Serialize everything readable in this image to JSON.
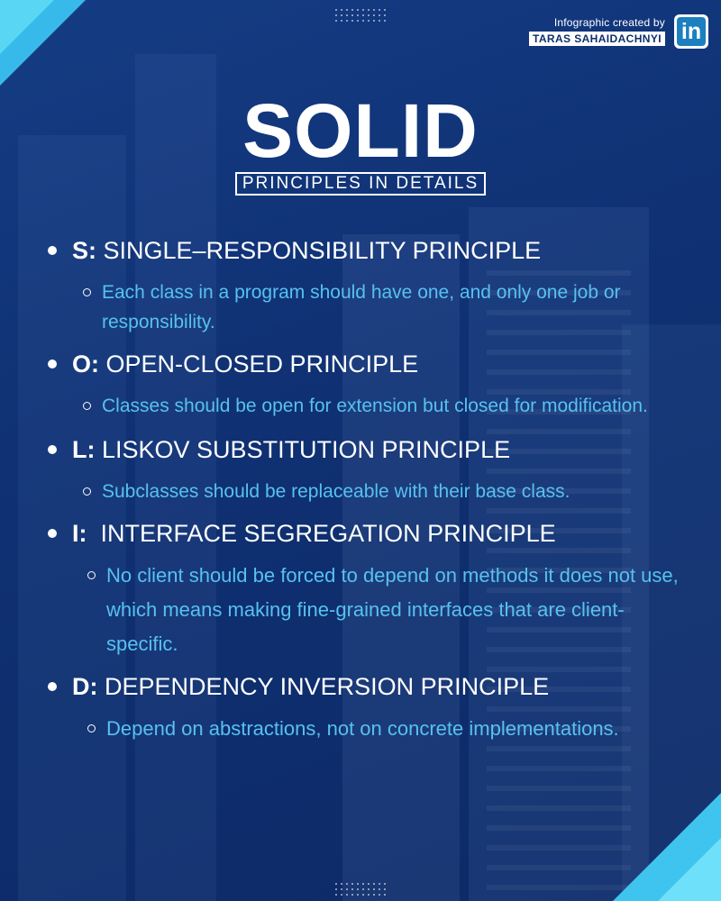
{
  "credit": {
    "line1": "Infographic created by",
    "name": "TARAS SAHAIDACHNYI",
    "badge": "in",
    "badge_icon": "linkedin-icon"
  },
  "header": {
    "title": "SOLID",
    "subtitle": "PRINCIPLES IN DETAILS"
  },
  "principles": [
    {
      "letter": "S:",
      "name": "SINGLE–RESPONSIBILITY PRINCIPLE",
      "description": "Each class in a program should have one, and only one job or responsibility."
    },
    {
      "letter": "O:",
      "name": "OPEN-CLOSED PRINCIPLE",
      "description": "Classes should be open for extension but closed for modification."
    },
    {
      "letter": "L:",
      "name": "LISKOV SUBSTITUTION PRINCIPLE",
      "description": "Subclasses should be replaceable with their base class."
    },
    {
      "letter": "I:",
      "name": " INTERFACE SEGREGATION PRINCIPLE",
      "description": "No client should be forced to depend on methods it does not use, which means making fine-grained interfaces that are client-specific."
    },
    {
      "letter": "D:",
      "name": "DEPENDENCY INVERSION PRINCIPLE",
      "description": "Depend on abstractions, not on concrete implementations."
    }
  ],
  "colors": {
    "background": "#0f3072",
    "accent": "#37b9e9",
    "description_text": "#57c1f0",
    "heading_text": "#ffffff"
  }
}
